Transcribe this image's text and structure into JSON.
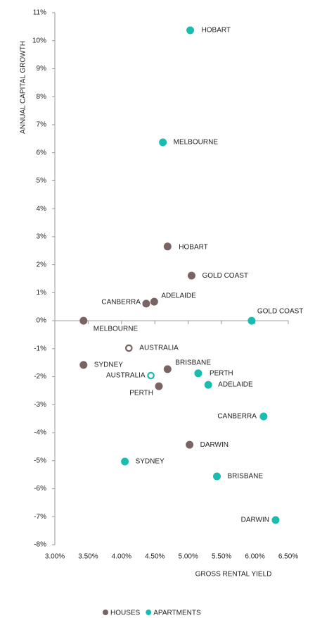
{
  "chart_data": {
    "type": "scatter",
    "x_label": "GROSS RENTAL YIELD",
    "y_label": "ANNUAL CAPITAL GROWTH",
    "xlim": [
      3,
      6.5
    ],
    "ylim": [
      -8,
      11
    ],
    "xticks": [
      {
        "value": 3,
        "label": "3.00%"
      },
      {
        "value": 3.5,
        "label": "3.50%"
      },
      {
        "value": 4,
        "label": "4.00%"
      },
      {
        "value": 4.5,
        "label": "4.50%"
      },
      {
        "value": 5,
        "label": "5.00%"
      },
      {
        "value": 5.5,
        "label": "5.50%"
      },
      {
        "value": 6,
        "label": "6.00%"
      },
      {
        "value": 6.5,
        "label": "6.50%"
      }
    ],
    "yticks": [
      {
        "value": -8,
        "label": "-8%"
      },
      {
        "value": -7,
        "label": "-7%"
      },
      {
        "value": -6,
        "label": "-6%"
      },
      {
        "value": -5,
        "label": "-5%"
      },
      {
        "value": -4,
        "label": "-4%"
      },
      {
        "value": -3,
        "label": "-3%"
      },
      {
        "value": -2,
        "label": "-2%"
      },
      {
        "value": -1,
        "label": "-1%"
      },
      {
        "value": 0,
        "label": "0%"
      },
      {
        "value": 1,
        "label": "1%"
      },
      {
        "value": 2,
        "label": "2%"
      },
      {
        "value": 3,
        "label": "3%"
      },
      {
        "value": 4,
        "label": "4%"
      },
      {
        "value": 5,
        "label": "5%"
      },
      {
        "value": 6,
        "label": "6%"
      },
      {
        "value": 7,
        "label": "7%"
      },
      {
        "value": 8,
        "label": "8%"
      },
      {
        "value": 9,
        "label": "9%"
      },
      {
        "value": 10,
        "label": "10%"
      },
      {
        "value": 11,
        "label": "11%"
      }
    ],
    "legend": "bottom",
    "series": [
      {
        "name": "HOUSES",
        "color": "#7a6363",
        "labels": [
          "MELBOURNE",
          "CANBERRA",
          "ADELAIDE",
          "HOBART",
          "GOLD COAST",
          "AUSTRALIA",
          "SYDNEY",
          "BRISBANE",
          "PERTH",
          "DARWIN"
        ],
        "x": [
          3.43,
          4.37,
          4.49,
          4.69,
          5.05,
          4.11,
          3.43,
          4.69,
          4.56,
          5.02
        ],
        "values": [
          0.0,
          0.61,
          0.68,
          2.65,
          1.61,
          -0.98,
          -1.58,
          -1.73,
          -2.34,
          -4.43
        ],
        "hollow": [
          false,
          false,
          false,
          false,
          false,
          true,
          false,
          false,
          false,
          false
        ]
      },
      {
        "name": "APARTMENTS",
        "color": "#1bbcb0",
        "labels": [
          "HOBART",
          "MELBOURNE",
          "GOLD COAST",
          "PERTH",
          "ADELAIDE",
          "AUSTRALIA",
          "CANBERRA",
          "SYDNEY",
          "BRISBANE",
          "DARWIN"
        ],
        "x": [
          5.03,
          4.62,
          5.95,
          5.15,
          5.3,
          4.44,
          6.13,
          4.05,
          5.43,
          6.31
        ],
        "values": [
          10.37,
          6.37,
          0.0,
          -1.88,
          -2.29,
          -1.96,
          -3.42,
          -5.03,
          -5.56,
          -7.12
        ],
        "hollow": [
          false,
          false,
          false,
          false,
          false,
          true,
          false,
          false,
          false,
          false
        ]
      }
    ]
  }
}
